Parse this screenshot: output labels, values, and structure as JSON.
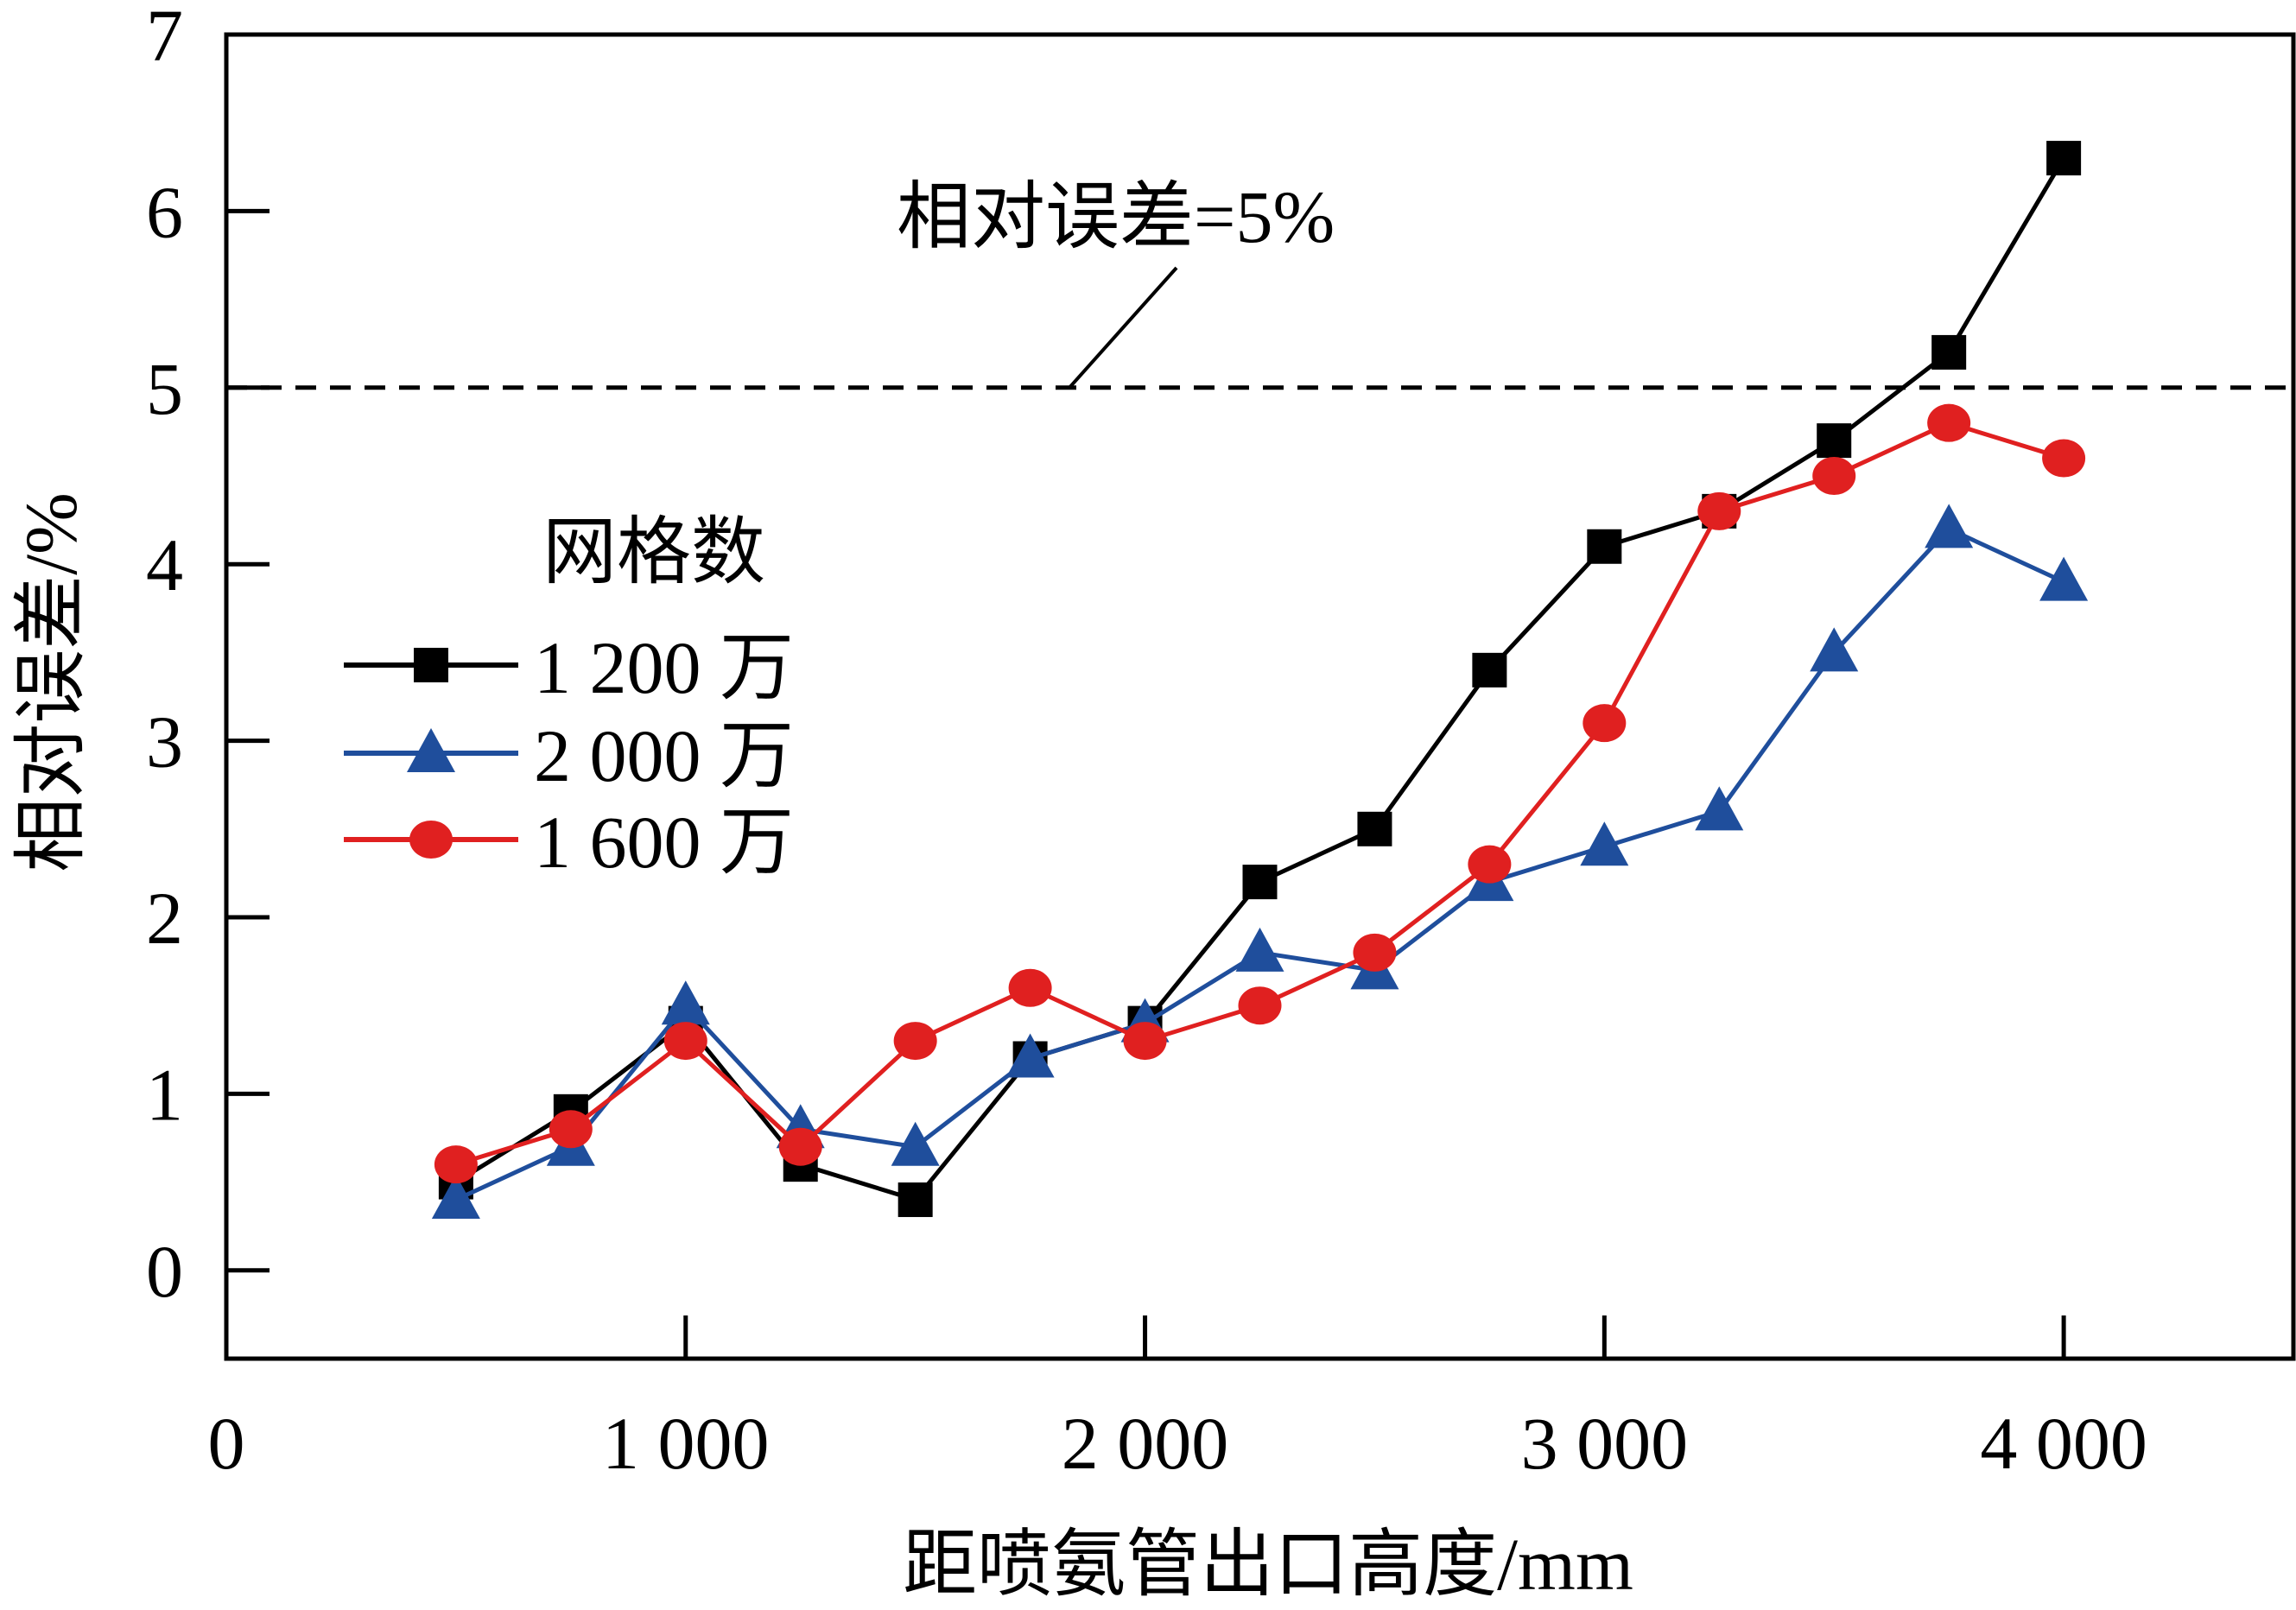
{
  "chart_data": {
    "type": "line",
    "title": "",
    "xlabel": "距喷氨管出口高度/mm",
    "ylabel": "相对误差/%",
    "xlim": [
      0,
      4500
    ],
    "ylim": [
      -0.5,
      7
    ],
    "x_ticks": [
      0,
      1000,
      2000,
      3000,
      4000
    ],
    "x_tick_labels": [
      "0",
      "1 000",
      "2 000",
      "3 000",
      "4 000"
    ],
    "y_ticks": [
      0,
      1,
      2,
      3,
      4,
      5,
      6,
      7
    ],
    "y_tick_labels": [
      "0",
      "1",
      "2",
      "3",
      "4",
      "5",
      "6",
      "7"
    ],
    "grid": false,
    "legend_title": "网格数",
    "legend_position": "left",
    "x": [
      500,
      750,
      1000,
      1250,
      1500,
      1750,
      2000,
      2250,
      2500,
      2750,
      3000,
      3250,
      3500,
      3750,
      4000
    ],
    "series": [
      {
        "name": "1 200 万",
        "color": "#000000",
        "marker": "square",
        "values": [
          0.5,
          0.9,
          1.4,
          0.6,
          0.4,
          1.2,
          1.4,
          2.2,
          2.5,
          3.4,
          4.1,
          4.3,
          4.7,
          5.2,
          6.3
        ]
      },
      {
        "name": "2 000 万",
        "color": "#1f4e9c",
        "marker": "triangle",
        "values": [
          0.4,
          0.7,
          1.5,
          0.8,
          0.7,
          1.2,
          1.4,
          1.8,
          1.7,
          2.2,
          2.4,
          2.6,
          3.5,
          4.2,
          3.9
        ]
      },
      {
        "name": "1 600 万",
        "color": "#e02020",
        "marker": "circle",
        "values": [
          0.6,
          0.8,
          1.3,
          0.7,
          1.3,
          1.6,
          1.3,
          1.5,
          1.8,
          2.3,
          3.1,
          4.3,
          4.5,
          4.8,
          4.6
        ]
      }
    ],
    "reference_line": {
      "y": 5,
      "style": "dashed",
      "label": "相对误差=5%"
    }
  }
}
